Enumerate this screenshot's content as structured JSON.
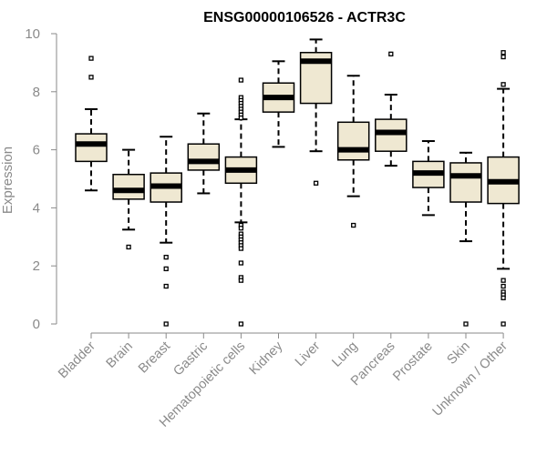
{
  "chart_data": {
    "type": "boxplot",
    "title": "ENSG00000106526 - ACTR3C",
    "xlabel": "",
    "ylabel": "Expression",
    "ylim": [
      0,
      10
    ],
    "yticks": [
      0,
      2,
      4,
      6,
      8,
      10
    ],
    "grid": false,
    "legend": "none",
    "box_fill": "#efe8d2",
    "box_stroke": "#000000",
    "axis_color": "#8a8a8a",
    "categories": [
      "Bladder",
      "Brain",
      "Breast",
      "Gastric",
      "Hematopoietic cells",
      "Kidney",
      "Liver",
      "Lung",
      "Pancreas",
      "Prostate",
      "Skin",
      "Unknown / Other"
    ],
    "boxes": [
      {
        "category": "Bladder",
        "whisker_low": 4.6,
        "q1": 5.6,
        "median": 6.2,
        "q3": 6.55,
        "whisker_high": 7.4,
        "outliers": [
          8.5,
          9.15
        ]
      },
      {
        "category": "Brain",
        "whisker_low": 3.25,
        "q1": 4.3,
        "median": 4.6,
        "q3": 5.15,
        "whisker_high": 6.0,
        "outliers": [
          2.65
        ]
      },
      {
        "category": "Breast",
        "whisker_low": 2.8,
        "q1": 4.2,
        "median": 4.75,
        "q3": 5.2,
        "whisker_high": 6.45,
        "outliers": [
          2.3,
          1.9,
          1.3,
          0.0
        ]
      },
      {
        "category": "Gastric",
        "whisker_low": 4.5,
        "q1": 5.3,
        "median": 5.6,
        "q3": 6.2,
        "whisker_high": 7.25,
        "outliers": []
      },
      {
        "category": "Hematopoietic cells",
        "whisker_low": 3.5,
        "q1": 4.85,
        "median": 5.3,
        "q3": 5.75,
        "whisker_high": 7.05,
        "outliers": [
          8.4,
          7.8,
          7.7,
          7.6,
          7.5,
          7.4,
          7.3,
          7.2,
          7.1,
          3.4,
          3.3,
          3.1,
          3.0,
          2.9,
          2.8,
          2.7,
          2.6,
          2.1,
          1.6,
          1.5,
          0.0
        ]
      },
      {
        "category": "Kidney",
        "whisker_low": 6.1,
        "q1": 7.3,
        "median": 7.8,
        "q3": 8.3,
        "whisker_high": 9.05,
        "outliers": []
      },
      {
        "category": "Liver",
        "whisker_low": 5.95,
        "q1": 7.6,
        "median": 9.05,
        "q3": 9.35,
        "whisker_high": 9.8,
        "outliers": [
          4.85
        ]
      },
      {
        "category": "Lung",
        "whisker_low": 4.4,
        "q1": 5.65,
        "median": 6.0,
        "q3": 6.95,
        "whisker_high": 8.55,
        "outliers": [
          3.4
        ]
      },
      {
        "category": "Pancreas",
        "whisker_low": 5.45,
        "q1": 5.95,
        "median": 6.6,
        "q3": 7.05,
        "whisker_high": 7.9,
        "outliers": [
          9.3
        ]
      },
      {
        "category": "Prostate",
        "whisker_low": 3.75,
        "q1": 4.7,
        "median": 5.2,
        "q3": 5.6,
        "whisker_high": 6.3,
        "outliers": []
      },
      {
        "category": "Skin",
        "whisker_low": 2.85,
        "q1": 4.2,
        "median": 5.1,
        "q3": 5.55,
        "whisker_high": 5.9,
        "outliers": [
          0.0
        ]
      },
      {
        "category": "Unknown / Other",
        "whisker_low": 1.9,
        "q1": 4.15,
        "median": 4.9,
        "q3": 5.75,
        "whisker_high": 8.1,
        "outliers": [
          9.35,
          9.2,
          8.25,
          1.5,
          1.3,
          1.1,
          1.0,
          0.9,
          0.0
        ]
      }
    ]
  }
}
